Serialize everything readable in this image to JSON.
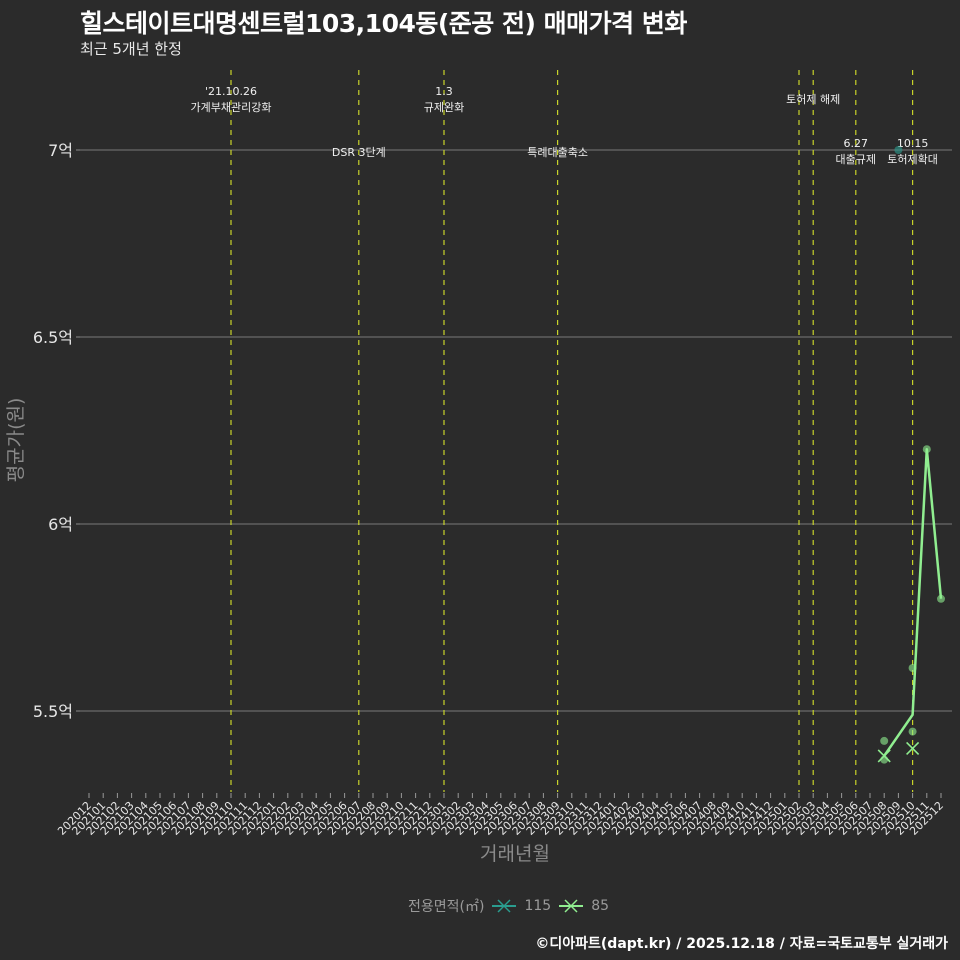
{
  "header": {
    "title": "힐스테이트대명센트럴103,104동(준공 전) 매매가격 변화",
    "subtitle": "최근 5개년 한정"
  },
  "footer": {
    "caption": "©디아파트(dapt.kr) / 2025.12.18 / 자료=국토교통부 실거래가"
  },
  "legend": {
    "title": "전용면적(㎡)",
    "items": [
      {
        "label": "115",
        "color": "#2a9d8f"
      },
      {
        "label": "85",
        "color": "#90ee90"
      }
    ]
  },
  "chart_data": {
    "type": "line",
    "title": "힐스테이트대명센트럴103,104동(준공 전) 매매가격 변화",
    "subtitle": "최근 5개년 한정",
    "xlabel": "거래년월",
    "ylabel": "평균가(원)",
    "ylim": [
      5.3,
      7.2
    ],
    "y_ticks": [
      "5.5억",
      "6억",
      "6.5억",
      "7억"
    ],
    "y_tick_values": [
      5.5,
      6.0,
      6.5,
      7.0
    ],
    "grid": true,
    "legend_position": "bottom",
    "x": [
      "202012",
      "202101",
      "202102",
      "202103",
      "202104",
      "202105",
      "202106",
      "202107",
      "202108",
      "202109",
      "202110",
      "202111",
      "202112",
      "202201",
      "202202",
      "202203",
      "202204",
      "202205",
      "202206",
      "202207",
      "202208",
      "202209",
      "202210",
      "202211",
      "202212",
      "202301",
      "202302",
      "202303",
      "202304",
      "202305",
      "202306",
      "202307",
      "202308",
      "202309",
      "202310",
      "202311",
      "202312",
      "202401",
      "202402",
      "202403",
      "202404",
      "202405",
      "202406",
      "202407",
      "202408",
      "202409",
      "202410",
      "202411",
      "202412",
      "202501",
      "202502",
      "202503",
      "202504",
      "202505",
      "202506",
      "202507",
      "202508",
      "202509",
      "202510",
      "202511",
      "202512"
    ],
    "series": [
      {
        "name": "85",
        "color": "#90ee90",
        "line": [
          {
            "x": "202508",
            "y": 5.38
          },
          {
            "x": "202510",
            "y": 5.49
          },
          {
            "x": "202511",
            "y": 6.2
          },
          {
            "x": "202512",
            "y": 5.8
          }
        ],
        "points": [
          {
            "x": "202508",
            "y": 5.42
          },
          {
            "x": "202508",
            "y": 5.37
          },
          {
            "x": "202510",
            "y": 5.615
          },
          {
            "x": "202510",
            "y": 5.445
          },
          {
            "x": "202511",
            "y": 6.2
          },
          {
            "x": "202512",
            "y": 5.8
          }
        ],
        "x_markers": [
          {
            "x": "202508",
            "y": 5.38
          },
          {
            "x": "202510",
            "y": 5.4
          }
        ]
      },
      {
        "name": "115",
        "color": "#2a9d8f",
        "line": [],
        "points": [
          {
            "x": "202509",
            "y": 7.0
          }
        ],
        "x_markers": []
      }
    ],
    "annotations": [
      {
        "x": "202110",
        "lines": [
          "'21.10.26",
          "가계부채관리강화"
        ],
        "row": "top"
      },
      {
        "x": "202207",
        "lines": [
          "DSR 3단계"
        ],
        "row": "mid"
      },
      {
        "x": "202301",
        "lines": [
          "1.3",
          "규제완화"
        ],
        "row": "top"
      },
      {
        "x": "202309",
        "lines": [
          "특례대출축소"
        ],
        "row": "mid"
      },
      {
        "x": "202502",
        "lines": [],
        "row": "none"
      },
      {
        "x": "202503",
        "lines": [
          "토허제 해제"
        ],
        "row": "upper"
      },
      {
        "x": "202506",
        "lines": [
          "6.27",
          "대출규제"
        ],
        "row": "low"
      },
      {
        "x": "202510",
        "lines": [
          "10.15",
          "토허제확대"
        ],
        "row": "low"
      }
    ]
  }
}
